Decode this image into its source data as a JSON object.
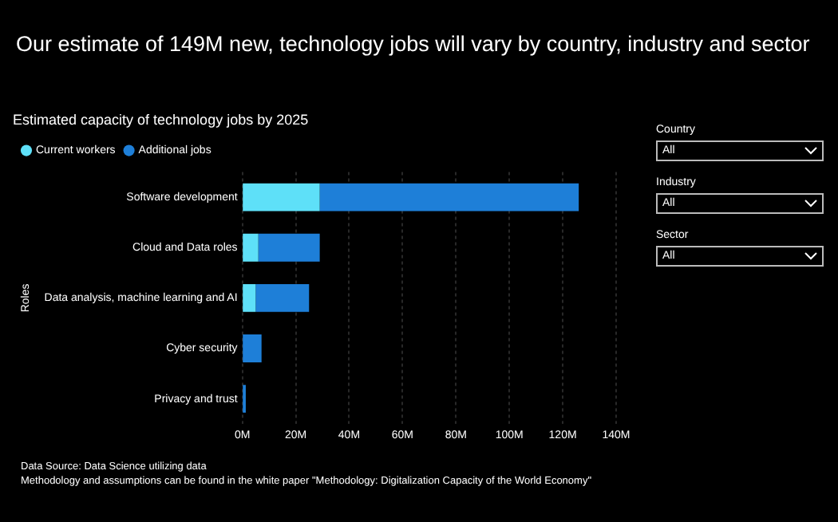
{
  "chart_data": {
    "type": "bar",
    "orientation": "horizontal",
    "stacked": true,
    "title": "Our estimate of 149M new, technology jobs will vary by country, industry and sector",
    "subtitle": "Estimated capacity of technology jobs by 2025",
    "ylabel": "Roles",
    "categories": [
      "Software development",
      "Cloud and Data roles",
      "Data analysis, machine learning and AI",
      "Cyber security",
      "Privacy and trust"
    ],
    "series": [
      {
        "name": "Current workers",
        "color": "#5ee0f8",
        "values": [
          29,
          6,
          5,
          null,
          null
        ]
      },
      {
        "name": "Additional jobs",
        "color": "#1e7fd8",
        "values": [
          97,
          23,
          20,
          7.2,
          1.3
        ]
      }
    ],
    "xlim": [
      0,
      140
    ],
    "xticks": [
      {
        "value": 0,
        "label": "0M"
      },
      {
        "value": 20,
        "label": "20M"
      },
      {
        "value": 40,
        "label": "40M"
      },
      {
        "value": 60,
        "label": "60M"
      },
      {
        "value": 80,
        "label": "80M"
      },
      {
        "value": 100,
        "label": "100M"
      },
      {
        "value": 120,
        "label": "120M"
      },
      {
        "value": 140,
        "label": "140M"
      }
    ],
    "grid": "x",
    "legend": "top left",
    "annotations": [
      "Data Source: Data Science utilizing data",
      "Methodology and assumptions can be found in the white paper \"Methodology: Digitalization Capacity of the World Economy\"",
      "Country",
      "All",
      "Industry",
      "All",
      "Sector",
      "All"
    ]
  }
}
